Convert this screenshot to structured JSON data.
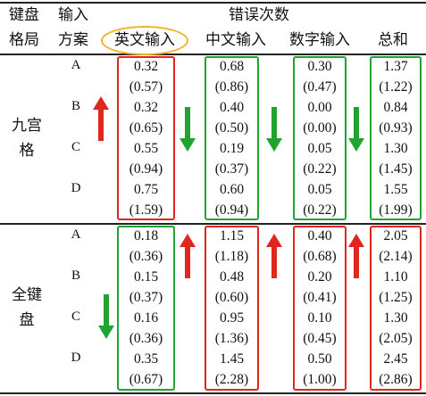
{
  "header": {
    "layout_label_line1": "键盘",
    "layout_label_line2": "格局",
    "scheme_label_line1": "输入",
    "scheme_label_line2": "方案",
    "error_count_label": "错误次数",
    "columns": [
      "英文输入",
      "中文输入",
      "数字输入",
      "总和"
    ]
  },
  "groups": [
    {
      "layout_name_line1": "九宫",
      "layout_name_line2": "格",
      "rows": [
        {
          "scheme": "A",
          "values": [
            "0.32",
            "0.68",
            "0.30",
            "1.37"
          ],
          "sds": [
            "(0.57)",
            "(0.86)",
            "(0.47)",
            "(1.22)"
          ]
        },
        {
          "scheme": "B",
          "values": [
            "0.32",
            "0.40",
            "0.00",
            "0.84"
          ],
          "sds": [
            "(0.65)",
            "(0.50)",
            "(0.00)",
            "(0.93)"
          ]
        },
        {
          "scheme": "C",
          "values": [
            "0.55",
            "0.19",
            "0.05",
            "1.30"
          ],
          "sds": [
            "(0.94)",
            "(0.37)",
            "(0.22)",
            "(1.45)"
          ]
        },
        {
          "scheme": "D",
          "values": [
            "0.75",
            "0.60",
            "0.05",
            "1.55"
          ],
          "sds": [
            "(1.59)",
            "(0.94)",
            "(0.22)",
            "(1.99)"
          ]
        }
      ]
    },
    {
      "layout_name_line1": "全键",
      "layout_name_line2": "盘",
      "rows": [
        {
          "scheme": "A",
          "values": [
            "0.18",
            "1.15",
            "0.40",
            "2.05"
          ],
          "sds": [
            "(0.36)",
            "(1.18)",
            "(0.68)",
            "(2.14)"
          ]
        },
        {
          "scheme": "B",
          "values": [
            "0.15",
            "0.48",
            "0.20",
            "1.10"
          ],
          "sds": [
            "(0.37)",
            "(0.60)",
            "(0.41)",
            "(1.25)"
          ]
        },
        {
          "scheme": "C",
          "values": [
            "0.16",
            "0.95",
            "0.10",
            "1.30"
          ],
          "sds": [
            "(0.36)",
            "(1.36)",
            "(0.45)",
            "(2.05)"
          ]
        },
        {
          "scheme": "D",
          "values": [
            "0.35",
            "1.45",
            "0.50",
            "2.45"
          ],
          "sds": [
            "(0.67)",
            "(2.28)",
            "(1.00)",
            "(2.86)"
          ]
        }
      ]
    }
  ],
  "colors": {
    "red": "#e0261f",
    "green": "#21a332",
    "highlight_ellipse": "#f2b329"
  },
  "annotations": {
    "group1_box_colors": [
      "red",
      "green",
      "green",
      "green"
    ],
    "group2_box_colors": [
      "green",
      "red",
      "red",
      "red"
    ],
    "arrow_icons": [
      "red-up-arrow-icon",
      "green-down-arrow-icon"
    ]
  }
}
